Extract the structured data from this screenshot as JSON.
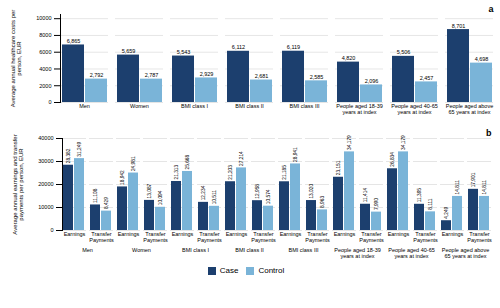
{
  "chart_data": [
    {
      "type": "bar",
      "title": "a",
      "categories": [
        "Men",
        "Women",
        "BMI class I",
        "BMI class II",
        "BMI class III",
        "People aged 18-39\nyears at index",
        "People aged 40-65\nyears at index",
        "People aged above\n65 years at index"
      ],
      "series": [
        {
          "name": "Case",
          "color": "#1c3f6e",
          "values": [
            6865,
            5659,
            5543,
            6112,
            6119,
            4820,
            5506,
            8701
          ],
          "value_labels": [
            "6,865",
            "5,659",
            "5,543",
            "6,112",
            "6,119",
            "4,820",
            "5,506",
            "8,701"
          ]
        },
        {
          "name": "Control",
          "color": "#7ab4d8",
          "values": [
            2792,
            2787,
            2929,
            2681,
            2585,
            2096,
            2457,
            4698
          ],
          "value_labels": [
            "2,792",
            "2,787",
            "2,929",
            "2,681",
            "2,585",
            "2,096",
            "2,457",
            "4,698"
          ]
        }
      ],
      "ylabel": "Average annual healthcare costs per\nperson, EUR",
      "ylim": [
        0,
        10500
      ],
      "yticks": [
        0,
        2000,
        4000,
        6000,
        8000,
        10000
      ],
      "grid": true,
      "data_labels": true
    },
    {
      "type": "bar",
      "title": "b",
      "groups": [
        "Men",
        "Women",
        "BMI class I",
        "BMI class II",
        "BMI class III",
        "People aged 18-39\nyears at index",
        "People aged 40-65\nyears at index",
        "People aged above\n65 years at index"
      ],
      "categories": [
        "Earnings",
        "Transfer\nPayments",
        "Earnings",
        "Transfer\nPayments",
        "Earnings",
        "Transfer\nPayments",
        "Earnings",
        "Transfer\nPayments",
        "Earnings",
        "Transfer\nPayments",
        "Earnings",
        "Transfer\nPayments",
        "Earnings",
        "Transfer\nPayments",
        "Earnings",
        "Transfer\nPayments"
      ],
      "series": [
        {
          "name": "Case",
          "color": "#1c3f6e",
          "values": [
            28382,
            11108,
            18942,
            13087,
            21313,
            12234,
            21203,
            12958,
            21185,
            13020,
            23151,
            11414,
            26834,
            11395,
            4249,
            17901
          ],
          "value_labels": [
            "28,382",
            "11,108",
            "18,942",
            "13,087",
            "21,313",
            "12,234",
            "21,203",
            "12,958",
            "21,185",
            "13,020",
            "23,151",
            "11,414",
            "26,834",
            "11,395",
            "4,249",
            "17,901"
          ]
        },
        {
          "name": "Control",
          "color": "#7ab4d8",
          "values": [
            31249,
            8429,
            24981,
            10094,
            25668,
            10511,
            27214,
            10574,
            28941,
            8963,
            34179,
            7990,
            34179,
            8111,
            14811,
            14811
          ],
          "value_labels": [
            "31,249",
            "8,429",
            "24,981",
            "10,094",
            "25,668",
            "10,511",
            "27,214",
            "10,574",
            "28,941",
            "8,963",
            "34,179",
            "7,990",
            "34,179",
            "8,111",
            "14,811",
            "14,811"
          ]
        }
      ],
      "ylabel": "Average annual earnings and transfer\npayments per person, EUR",
      "ylim": [
        0,
        40000
      ],
      "yticks": [
        0,
        10000,
        20000,
        30000,
        40000
      ],
      "grid": true,
      "data_labels": true,
      "legend": "bottom"
    }
  ]
}
